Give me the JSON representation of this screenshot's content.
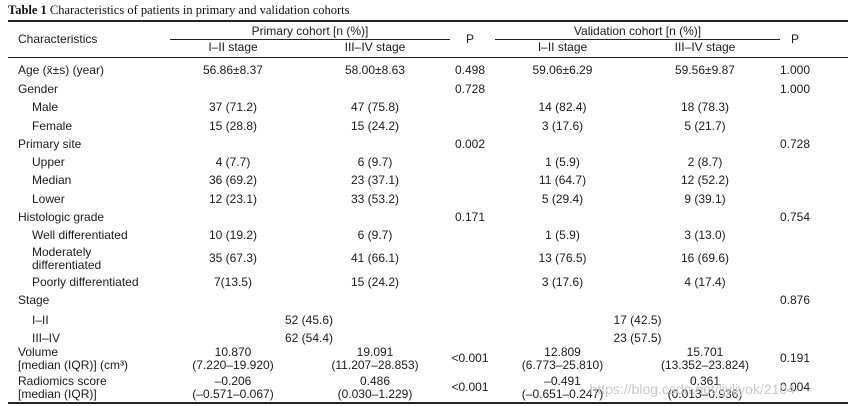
{
  "caption": {
    "label": "Table 1",
    "text": "Characteristics of patients in primary and validation cohorts"
  },
  "header": {
    "characteristics": "Characteristics",
    "primary_group": "Primary cohort [n (%)]",
    "validation_group": "Validation cohort [n (%)]",
    "stage_early": "I–II stage",
    "stage_late": "III–IV stage",
    "p": "P"
  },
  "rows": [
    {
      "label": "Age (x̄±s) (year)",
      "indent": false,
      "p1": "56.86±8.37",
      "p2": "58.00±8.63",
      "pv": "0.498",
      "v1": "59.06±6.29",
      "v2": "59.56±9.87",
      "vp": "1.000"
    },
    {
      "label": "Gender",
      "indent": false,
      "p1": "",
      "p2": "",
      "pv": "0.728",
      "v1": "",
      "v2": "",
      "vp": "1.000"
    },
    {
      "label": "Male",
      "indent": true,
      "p1": "37 (71.2)",
      "p2": "47 (75.8)",
      "pv": "",
      "v1": "14 (82.4)",
      "v2": "18 (78.3)",
      "vp": ""
    },
    {
      "label": "Female",
      "indent": true,
      "p1": "15 (28.8)",
      "p2": "15 (24.2)",
      "pv": "",
      "v1": "3 (17.6)",
      "v2": "5 (21.7)",
      "vp": ""
    },
    {
      "label": "Primary site",
      "indent": false,
      "p1": "",
      "p2": "",
      "pv": "0.002",
      "v1": "",
      "v2": "",
      "vp": "0.728"
    },
    {
      "label": "Upper",
      "indent": true,
      "p1": "4 (7.7)",
      "p2": "6 (9.7)",
      "pv": "",
      "v1": "1 (5.9)",
      "v2": "2 (8.7)",
      "vp": ""
    },
    {
      "label": "Median",
      "indent": true,
      "p1": "36 (69.2)",
      "p2": "23 (37.1)",
      "pv": "",
      "v1": "11 (64.7)",
      "v2": "12 (52.2)",
      "vp": ""
    },
    {
      "label": "Lower",
      "indent": true,
      "p1": "12 (23.1)",
      "p2": "33 (53.2)",
      "pv": "",
      "v1": "5 (29.4)",
      "v2": "9 (39.1)",
      "vp": ""
    },
    {
      "label": "Histologic grade",
      "indent": false,
      "p1": "",
      "p2": "",
      "pv": "0.171",
      "v1": "",
      "v2": "",
      "vp": "0.754"
    },
    {
      "label": "Well differentiated",
      "indent": true,
      "p1": "10 (19.2)",
      "p2": "6 (9.7)",
      "pv": "",
      "v1": "1 (5.9)",
      "v2": "3 (13.0)",
      "vp": ""
    },
    {
      "label": "Moderately",
      "label2": "differentiated",
      "indent": true,
      "p1": "35 (67.3)",
      "p2": "41 (66.1)",
      "pv": "",
      "v1": "13 (76.5)",
      "v2": "16 (69.6)",
      "vp": ""
    },
    {
      "label": "Poorly differentiated",
      "indent": true,
      "p1": "7(13.5)",
      "p2": "15 (24.2)",
      "pv": "",
      "v1": "3 (17.6)",
      "v2": "4 (17.4)",
      "vp": ""
    },
    {
      "label": "Stage",
      "indent": false,
      "p1": "",
      "p2": "",
      "pv": "",
      "v1": "",
      "v2": "",
      "vp": "0.876"
    },
    {
      "label": "I–II",
      "indent": true,
      "pm": "52 (45.6)",
      "vm": "17 (42.5)",
      "vp": ""
    },
    {
      "label": "III–IV",
      "indent": true,
      "pm": "62 (54.4)",
      "vm": "23 (57.5)",
      "vp": ""
    },
    {
      "label": "Volume",
      "label2": "[median (IQR)] (cm³)",
      "indent": false,
      "p1": "10.870",
      "p1b": "(7.220–19.920)",
      "p2": "19.091",
      "p2b": "(11.207–28.853)",
      "pv": "<0.001",
      "v1": "12.809",
      "v1b": "(6.773–25.810)",
      "v2": "15.701",
      "v2b": "(13.352–23.824)",
      "vp": "0.191"
    },
    {
      "label": "Radiomics score",
      "label2": "[median (IQR)]",
      "indent": false,
      "p1": "–0.206",
      "p1b": "(–0.571–0.067)",
      "p2": "0.486",
      "p2b": "(0.030–1.229)",
      "pv": "<0.001",
      "v1": "–0.491",
      "v1b": "(–0.651–0.247)",
      "v2": "0.361",
      "v2b": "(0.013–0.936)",
      "vp": "0.004"
    }
  ],
  "watermark": "https://blog.csdn.net/ljyljyok/2104"
}
